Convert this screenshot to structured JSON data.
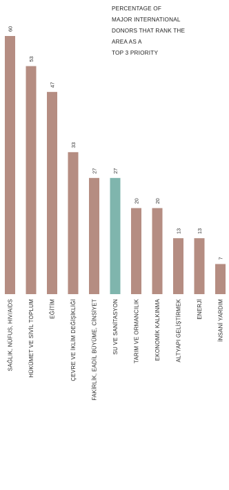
{
  "legend_lines": [
    "PERCENTAGE OF",
    "MAJOR INTERNATIONAL",
    "DONORS THAT RANK THE",
    "AREA AS A",
    "TOP 3 PRIORITY"
  ],
  "colors": {
    "bar": "#b58d82",
    "highlight": "#7fb5ad",
    "text": "#2a2a2a"
  },
  "chart_data": {
    "type": "bar",
    "orientation": "vertical",
    "ylim": [
      0,
      60
    ],
    "categories": [
      "SAĞLIK, NÜFUS, HIV/AIDS",
      "HÜKÜMET VE SİVİL TOPLUM",
      "EĞİTİM",
      "ÇEVRE VE İKLİM DEĞİŞİKLİĞİ",
      "FAKİRLİK, EADİL BÜYÜME, CİNSİYET",
      "SU VE SANİTASYON",
      "TARIM VE ORMANCILIK",
      "EKONOMİK KALKINMA",
      "ALTYAPI GELİŞTİRMEK",
      "ENERJİ",
      "İNSANİ YARDIM"
    ],
    "values": [
      60,
      53,
      47,
      33,
      27,
      27,
      20,
      20,
      13,
      13,
      7
    ],
    "highlight_index": 5,
    "legend": "top-right",
    "grid": false
  }
}
